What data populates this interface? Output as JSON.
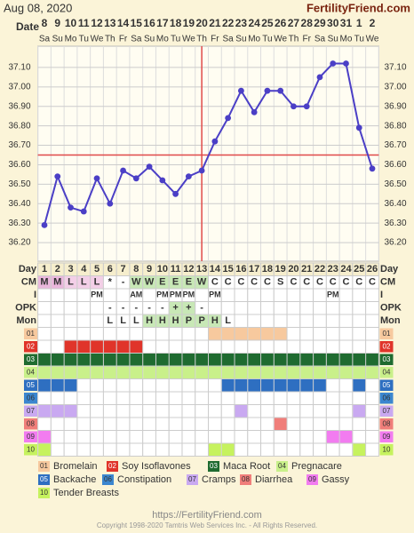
{
  "header": {
    "date": "Aug 08, 2020",
    "site": "FertilityFriend.com"
  },
  "chart_data": {
    "type": "line",
    "row_label": "Date",
    "categories": [
      "8",
      "9",
      "10",
      "11",
      "12",
      "13",
      "14",
      "15",
      "16",
      "17",
      "18",
      "19",
      "20",
      "21",
      "22",
      "23",
      "24",
      "25",
      "26",
      "27",
      "28",
      "29",
      "30",
      "31",
      "1",
      "2"
    ],
    "weekdays": [
      "Sa",
      "Su",
      "Mo",
      "Tu",
      "We",
      "Th",
      "Fr",
      "Sa",
      "Su",
      "Mo",
      "Tu",
      "We",
      "Th",
      "Fr",
      "Sa",
      "Su",
      "Mo",
      "Tu",
      "We",
      "Th",
      "Fr",
      "Sa",
      "Su",
      "Mo",
      "Tu",
      "We"
    ],
    "values": [
      36.29,
      36.54,
      36.38,
      36.36,
      36.53,
      36.4,
      36.57,
      36.53,
      36.59,
      36.52,
      36.45,
      36.54,
      36.57,
      36.72,
      36.84,
      36.98,
      36.87,
      36.98,
      36.98,
      36.9,
      36.9,
      37.05,
      37.12,
      37.12,
      36.79,
      36.58
    ],
    "color": "#4b3fc6",
    "ylim": [
      36.1,
      37.2
    ],
    "yticks": [
      {
        "value": 36.2,
        "label": "36.20"
      },
      {
        "value": 36.3,
        "label": "36.30"
      },
      {
        "value": 36.4,
        "label": "36.40"
      },
      {
        "value": 36.5,
        "label": "36.50"
      },
      {
        "value": 36.6,
        "label": "36.60"
      },
      {
        "value": 36.7,
        "label": "36.70"
      },
      {
        "value": 36.8,
        "label": "36.80"
      },
      {
        "value": 36.9,
        "label": "36.90"
      },
      {
        "value": 37.0,
        "label": "37.00"
      },
      {
        "value": 37.1,
        "label": "37.10"
      }
    ],
    "grid": true,
    "coverline": 36.65,
    "ovulation_day": 13,
    "marker_color": "#e04a4a"
  },
  "table": {
    "header": "Day",
    "days": [
      1,
      2,
      3,
      4,
      5,
      6,
      7,
      8,
      9,
      10,
      11,
      12,
      13,
      14,
      15,
      16,
      17,
      18,
      19,
      20,
      21,
      22,
      23,
      24,
      25,
      26
    ],
    "text_rows": [
      {
        "label": "CM",
        "values": [
          "M",
          "M",
          "L",
          "L",
          "L",
          "*",
          "-",
          "W",
          "W",
          "E",
          "E",
          "E",
          "W",
          "C",
          "C",
          "C",
          "C",
          "C",
          "S",
          "C",
          "C",
          "C",
          "C",
          "C",
          "C",
          "C"
        ]
      },
      {
        "label": "I",
        "values": [
          null,
          null,
          null,
          null,
          "PM",
          null,
          null,
          "AM",
          null,
          "PM",
          "PM",
          "PM",
          null,
          "PM",
          null,
          null,
          null,
          null,
          null,
          null,
          null,
          null,
          "PM",
          null,
          null,
          null
        ]
      },
      {
        "label": "OPK",
        "values": [
          null,
          null,
          null,
          null,
          null,
          "-",
          "-",
          "-",
          "-",
          "-",
          "+",
          "+",
          "-",
          null,
          null,
          null,
          null,
          null,
          null,
          null,
          null,
          null,
          null,
          null,
          null,
          null
        ]
      },
      {
        "label": "Mon",
        "values": [
          null,
          null,
          null,
          null,
          null,
          "L",
          "L",
          "L",
          "H",
          "H",
          "H",
          "P",
          "P",
          "H",
          "L",
          null,
          null,
          null,
          null,
          null,
          null,
          null,
          null,
          null,
          null,
          null
        ]
      }
    ],
    "indicator_rows": [
      {
        "code": "01",
        "name": "Bromelain",
        "color": "#f7c99e",
        "days": [
          14,
          15,
          16,
          17,
          18,
          19
        ]
      },
      {
        "code": "02",
        "name": "Soy Isoflavones",
        "color": "#e0342a",
        "days": [
          3,
          4,
          5,
          6,
          7,
          8
        ]
      },
      {
        "code": "03",
        "name": "Maca Root",
        "color": "#1f6b30",
        "days": [
          1,
          2,
          3,
          4,
          5,
          6,
          7,
          8,
          9,
          10,
          11,
          12,
          13,
          14,
          15,
          16,
          17,
          18,
          19,
          20,
          21,
          22,
          23,
          24,
          25,
          26
        ]
      },
      {
        "code": "04",
        "name": "Pregnacare",
        "color": "#c9f08a",
        "days": [
          1,
          2,
          3,
          4,
          5,
          6,
          7,
          8,
          9,
          10,
          11,
          12,
          13,
          14,
          15,
          16,
          17,
          18,
          19,
          20,
          21,
          22,
          23,
          24,
          25,
          26
        ]
      },
      {
        "code": "05",
        "name": "Backache",
        "color": "#2e6fc1",
        "days": [
          1,
          2,
          3,
          15,
          16,
          17,
          18,
          19,
          20,
          21,
          22,
          25
        ]
      },
      {
        "code": "06",
        "name": "Constipation",
        "color": "#3b86cf",
        "days": []
      },
      {
        "code": "07",
        "name": "Cramps",
        "color": "#c9a9f1",
        "days": [
          1,
          2,
          3,
          16,
          25
        ]
      },
      {
        "code": "08",
        "name": "Diarrhea",
        "color": "#f07e7a",
        "days": [
          19
        ]
      },
      {
        "code": "09",
        "name": "Gassy",
        "color": "#f27cf0",
        "days": [
          1,
          23,
          24
        ]
      },
      {
        "code": "10",
        "name": "Tender Breasts",
        "color": "#c6f25e",
        "days": [
          1,
          14,
          15,
          25
        ]
      }
    ]
  },
  "footer": {
    "url": "https://FertilityFriend.com",
    "copyright": "Copyright 1998-2020 Tamtris Web Services Inc. - All Rights Reserved."
  }
}
